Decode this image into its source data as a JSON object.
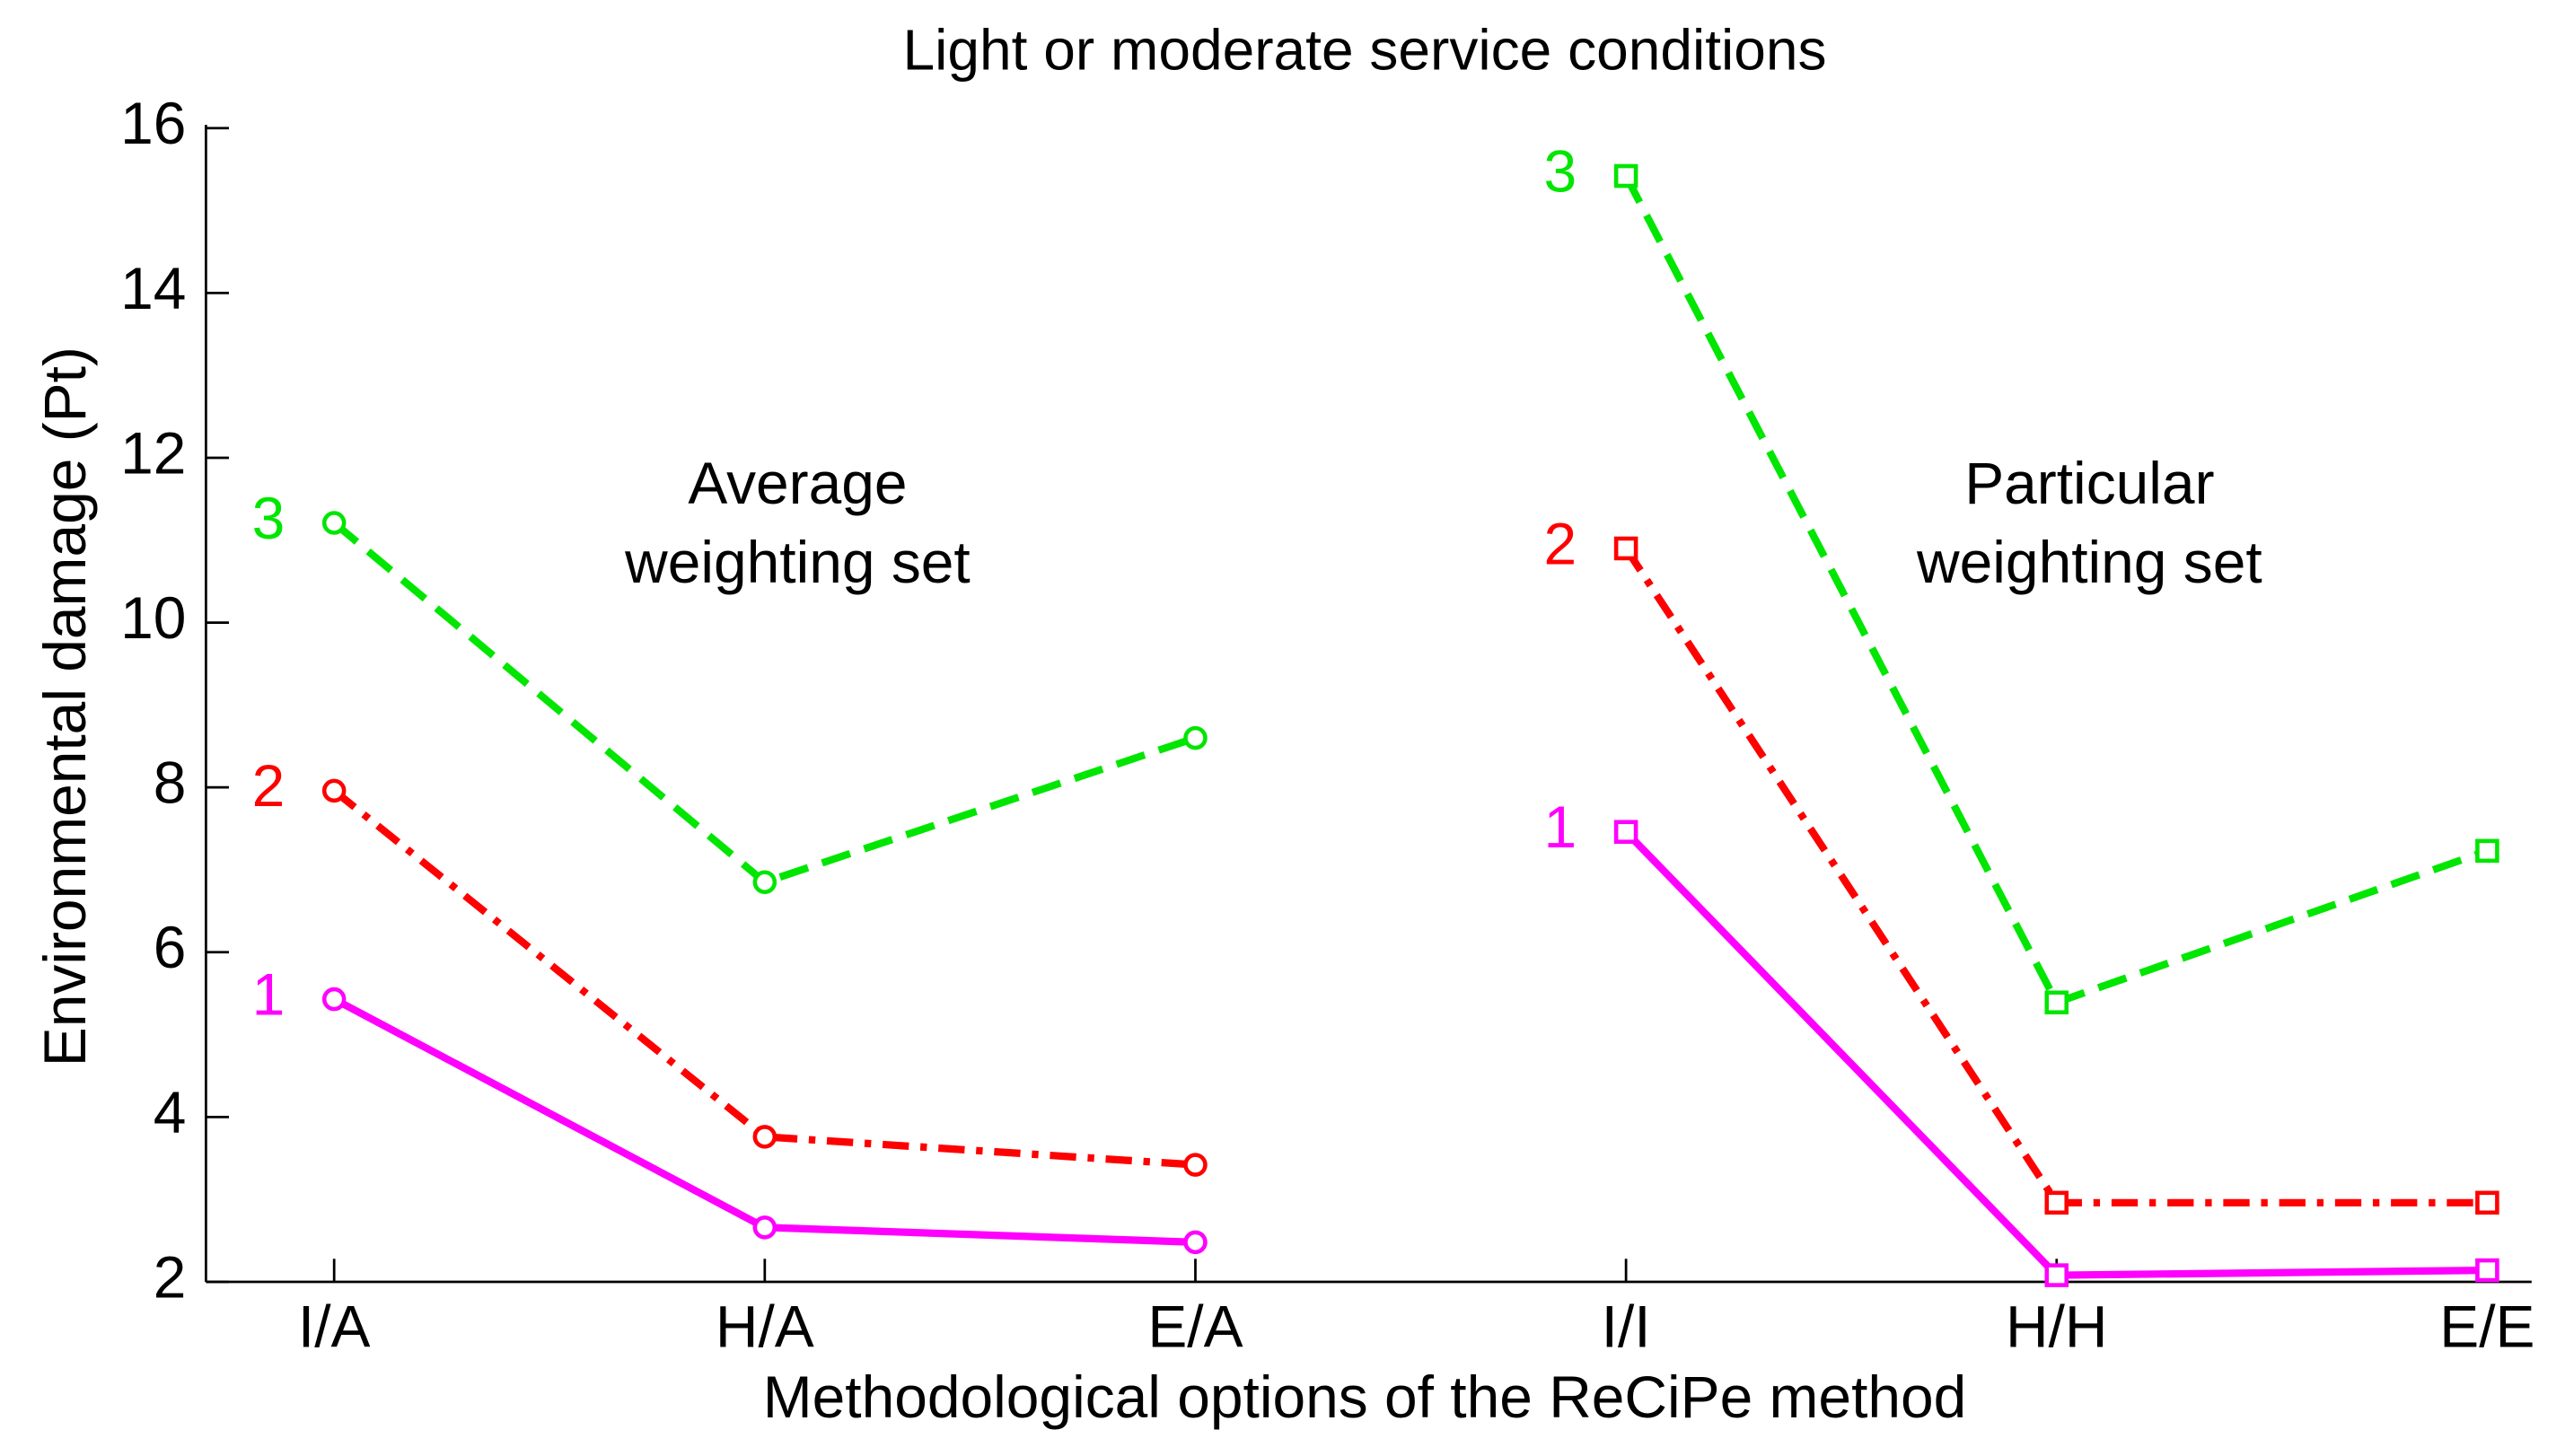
{
  "chart_data": {
    "type": "line",
    "title": "Light or moderate service conditions",
    "xlabel": "Methodological options of the ReCiPe method",
    "ylabel": "Environmental damage (Pt)",
    "ylim": [
      2,
      16
    ],
    "yticks": [
      2,
      4,
      6,
      8,
      10,
      12,
      14,
      16
    ],
    "groups": [
      {
        "label": [
          "Average",
          "weighting set"
        ],
        "marker": "circle",
        "categories": [
          "I/A",
          "H/A",
          "E/A"
        ],
        "series": [
          {
            "name": "1",
            "color": "#ff00ff",
            "dash": "solid",
            "values": [
              5.43,
              2.66,
              2.48
            ]
          },
          {
            "name": "2",
            "color": "#ff0000",
            "dash": "dashdot",
            "values": [
              7.96,
              3.76,
              3.42
            ]
          },
          {
            "name": "3",
            "color": "#00e600",
            "dash": "dashed",
            "values": [
              11.21,
              6.85,
              8.6
            ]
          }
        ]
      },
      {
        "label": [
          "Particular",
          "weighting set"
        ],
        "marker": "square",
        "categories": [
          "I/I",
          "H/H",
          "E/E"
        ],
        "series": [
          {
            "name": "1",
            "color": "#ff00ff",
            "dash": "solid",
            "values": [
              7.46,
              2.08,
              2.14
            ]
          },
          {
            "name": "2",
            "color": "#ff0000",
            "dash": "dashdot",
            "values": [
              10.9,
              2.96,
              2.96
            ]
          },
          {
            "name": "3",
            "color": "#00e600",
            "dash": "dashed",
            "values": [
              15.42,
              5.39,
              7.23
            ]
          }
        ]
      }
    ]
  }
}
